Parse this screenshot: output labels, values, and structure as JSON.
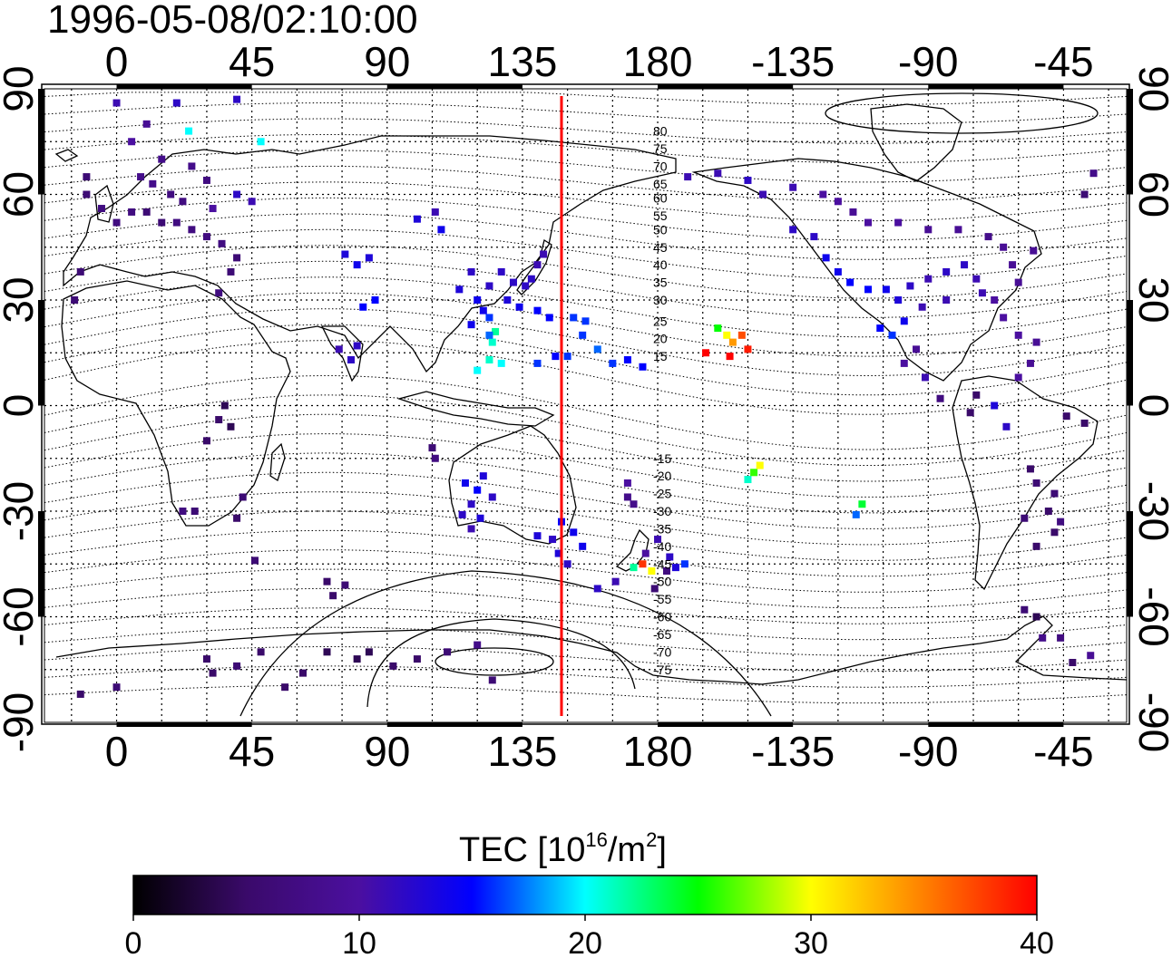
{
  "timestamp": "1996-05-08/02:10:00",
  "map": {
    "lon_ticks": [
      "0",
      "45",
      "90",
      "135",
      "180",
      "-135",
      "-90",
      "-45"
    ],
    "lon_tick_values": [
      0,
      45,
      90,
      135,
      180,
      225,
      270,
      315
    ],
    "lat_ticks": [
      "90",
      "60",
      "30",
      "0",
      "-30",
      "-60",
      "-90"
    ],
    "lat_tick_values": [
      90,
      60,
      30,
      0,
      -30,
      -60,
      -90
    ],
    "lon_range": [
      -24,
      336
    ],
    "lat_range": [
      -90,
      90
    ],
    "grid": "dotted-15deg",
    "meridian_marker": {
      "lon": 148,
      "color": "#ff0000"
    },
    "contour_labels": [
      "80",
      "75",
      "70",
      "65",
      "60",
      "55",
      "50",
      "45",
      "40",
      "35",
      "30",
      "25",
      "20",
      "15",
      "-15",
      "-20",
      "-25",
      "-30",
      "-35",
      "-40",
      "-45",
      "-50",
      "-55",
      "-60",
      "-65",
      "-70",
      "-75"
    ],
    "contour_label_lats": [
      78,
      73,
      68,
      63,
      59,
      54,
      50,
      45,
      40,
      35,
      30,
      24,
      19,
      14,
      -15,
      -20,
      -25,
      -30,
      -35,
      -40,
      -45,
      -50,
      -55,
      -60,
      -65,
      -70,
      -75
    ]
  },
  "colorbar": {
    "title_main": "TEC  [10",
    "title_sup1": "16",
    "title_mid": "/m",
    "title_sup2": "2",
    "title_end": "]",
    "ticks": [
      "0",
      "10",
      "20",
      "30",
      "40"
    ],
    "min": 0,
    "max": 40,
    "colors": [
      "#000000",
      "#3a0a6a",
      "#4b0fa0",
      "#0000ff",
      "#00ffff",
      "#00ff00",
      "#ffff00",
      "#ff8000",
      "#ff0000"
    ]
  },
  "tec_observations": [
    [
      8,
      65,
      8
    ],
    [
      12,
      63,
      8
    ],
    [
      18,
      60,
      7
    ],
    [
      22,
      58,
      7
    ],
    [
      5,
      55,
      7
    ],
    [
      10,
      55,
      6
    ],
    [
      15,
      52,
      6
    ],
    [
      20,
      52,
      7
    ],
    [
      25,
      50,
      7
    ],
    [
      30,
      48,
      7
    ],
    [
      35,
      46,
      7
    ],
    [
      40,
      42,
      6
    ],
    [
      -10,
      60,
      6
    ],
    [
      -5,
      56,
      7
    ],
    [
      0,
      52,
      7
    ],
    [
      30,
      64,
      7
    ],
    [
      25,
      68,
      8
    ],
    [
      15,
      70,
      8
    ],
    [
      5,
      75,
      10
    ],
    [
      0,
      86,
      11
    ],
    [
      20,
      86,
      12
    ],
    [
      40,
      87,
      12
    ],
    [
      10,
      80,
      9
    ],
    [
      -10,
      65,
      6
    ],
    [
      24,
      78,
      20
    ],
    [
      48,
      75,
      20
    ],
    [
      40,
      60,
      12
    ],
    [
      45,
      58,
      11
    ],
    [
      32,
      56,
      10
    ],
    [
      -12,
      38,
      6
    ],
    [
      -14,
      30,
      6
    ],
    [
      38,
      38,
      6
    ],
    [
      34,
      32,
      7
    ],
    [
      100,
      53,
      13
    ],
    [
      106,
      55,
      11
    ],
    [
      108,
      50,
      14
    ],
    [
      76,
      43,
      13
    ],
    [
      80,
      40,
      14
    ],
    [
      84,
      42,
      13
    ],
    [
      82,
      28,
      15
    ],
    [
      86,
      30,
      15
    ],
    [
      74,
      16,
      11
    ],
    [
      78,
      13,
      12
    ],
    [
      80,
      17,
      12
    ],
    [
      118,
      38,
      12
    ],
    [
      124,
      34,
      12
    ],
    [
      128,
      38,
      12
    ],
    [
      132,
      35,
      12
    ],
    [
      138,
      36,
      12
    ],
    [
      140,
      40,
      11
    ],
    [
      142,
      43,
      11
    ],
    [
      136,
      34,
      12
    ],
    [
      114,
      33,
      13
    ],
    [
      120,
      30,
      14
    ],
    [
      122,
      27,
      14
    ],
    [
      124,
      25,
      16
    ],
    [
      118,
      23,
      14
    ],
    [
      126,
      21,
      22
    ],
    [
      125,
      18,
      21
    ],
    [
      124,
      13,
      21
    ],
    [
      120,
      10,
      20
    ],
    [
      124,
      20,
      17
    ],
    [
      128,
      12,
      20
    ],
    [
      130,
      30,
      13
    ],
    [
      134,
      28,
      14
    ],
    [
      140,
      27,
      15
    ],
    [
      144,
      25,
      15
    ],
    [
      152,
      25,
      16
    ],
    [
      156,
      24,
      16
    ],
    [
      146,
      14,
      15
    ],
    [
      150,
      14,
      16
    ],
    [
      140,
      12,
      16
    ],
    [
      155,
      20,
      16
    ],
    [
      160,
      16,
      17
    ],
    [
      165,
      12,
      16
    ],
    [
      170,
      13,
      15
    ],
    [
      175,
      11,
      15
    ],
    [
      115,
      -31,
      12
    ],
    [
      118,
      -28,
      12
    ],
    [
      121,
      -32,
      13
    ],
    [
      116,
      -22,
      14
    ],
    [
      120,
      -24,
      15
    ],
    [
      122,
      -20,
      13
    ],
    [
      125,
      -26,
      12
    ],
    [
      118,
      -35,
      11
    ],
    [
      105,
      -12,
      6
    ],
    [
      106,
      -15,
      7
    ],
    [
      140,
      -37,
      13
    ],
    [
      145,
      -38,
      12
    ],
    [
      148,
      -33,
      15
    ],
    [
      152,
      -36,
      14
    ],
    [
      147,
      -42,
      13
    ],
    [
      150,
      -45,
      12
    ],
    [
      155,
      -40,
      14
    ],
    [
      160,
      -52,
      12
    ],
    [
      166,
      -50,
      11
    ],
    [
      172,
      -46,
      22
    ],
    [
      175,
      -45,
      38
    ],
    [
      178,
      -47,
      30
    ],
    [
      176,
      -42,
      10
    ],
    [
      180,
      -38,
      11
    ],
    [
      184,
      -43,
      12
    ],
    [
      186,
      -46,
      13
    ],
    [
      189,
      -45,
      16
    ],
    [
      170,
      -26,
      8
    ],
    [
      172,
      -28,
      8
    ],
    [
      170,
      -22,
      10
    ],
    [
      183,
      -47,
      7
    ],
    [
      179,
      -52,
      6
    ],
    [
      200,
      22,
      25
    ],
    [
      203,
      20,
      30
    ],
    [
      205,
      18,
      34
    ],
    [
      208,
      20,
      37
    ],
    [
      210,
      16,
      39
    ],
    [
      204,
      14,
      40
    ],
    [
      196,
      15,
      40
    ],
    [
      210,
      -21,
      21
    ],
    [
      212,
      -19,
      26
    ],
    [
      214,
      -17,
      30
    ],
    [
      248,
      -28,
      24
    ],
    [
      246,
      -31,
      17
    ],
    [
      190,
      65,
      11
    ],
    [
      200,
      66,
      11
    ],
    [
      210,
      64,
      12
    ],
    [
      215,
      60,
      11
    ],
    [
      225,
      62,
      11
    ],
    [
      235,
      60,
      10
    ],
    [
      240,
      58,
      10
    ],
    [
      245,
      55,
      9
    ],
    [
      250,
      52,
      10
    ],
    [
      260,
      52,
      10
    ],
    [
      270,
      50,
      9
    ],
    [
      280,
      50,
      9
    ],
    [
      290,
      48,
      8
    ],
    [
      295,
      45,
      9
    ],
    [
      225,
      50,
      12
    ],
    [
      232,
      48,
      12
    ],
    [
      236,
      42,
      14
    ],
    [
      240,
      38,
      14
    ],
    [
      244,
      35,
      15
    ],
    [
      250,
      33,
      15
    ],
    [
      256,
      33,
      14
    ],
    [
      260,
      30,
      13
    ],
    [
      264,
      34,
      12
    ],
    [
      270,
      36,
      11
    ],
    [
      276,
      38,
      12
    ],
    [
      282,
      40,
      12
    ],
    [
      286,
      36,
      11
    ],
    [
      288,
      32,
      11
    ],
    [
      292,
      30,
      10
    ],
    [
      276,
      30,
      11
    ],
    [
      268,
      28,
      11
    ],
    [
      262,
      24,
      14
    ],
    [
      258,
      20,
      16
    ],
    [
      254,
      22,
      15
    ],
    [
      298,
      40,
      9
    ],
    [
      305,
      44,
      9
    ],
    [
      300,
      35,
      9
    ],
    [
      295,
      25,
      10
    ],
    [
      300,
      20,
      10
    ],
    [
      306,
      18,
      9
    ],
    [
      304,
      12,
      9
    ],
    [
      300,
      8,
      10
    ],
    [
      296,
      -6,
      12
    ],
    [
      292,
      0,
      13
    ],
    [
      322,
      60,
      6
    ],
    [
      325,
      66,
      8
    ],
    [
      304,
      -18,
      5
    ],
    [
      306,
      -22,
      6
    ],
    [
      312,
      -25,
      6
    ],
    [
      310,
      -30,
      5
    ],
    [
      312,
      -36,
      5
    ],
    [
      306,
      -40,
      5
    ],
    [
      302,
      -32,
      6
    ],
    [
      314,
      -33,
      7
    ],
    [
      302,
      -58,
      6
    ],
    [
      306,
      -60,
      4
    ],
    [
      308,
      -66,
      8
    ],
    [
      314,
      -66,
      7
    ],
    [
      318,
      -73,
      5
    ],
    [
      324,
      -71,
      9
    ],
    [
      322,
      -5,
      5
    ],
    [
      316,
      -3,
      5
    ],
    [
      284,
      -2,
      5
    ],
    [
      286,
      3,
      5
    ],
    [
      274,
      2,
      7
    ],
    [
      269,
      8,
      11
    ],
    [
      262,
      12,
      10
    ],
    [
      266,
      16,
      9
    ],
    [
      34,
      -4,
      5
    ],
    [
      38,
      -6,
      4
    ],
    [
      36,
      0,
      4
    ],
    [
      30,
      -10,
      5
    ],
    [
      42,
      -26,
      6
    ],
    [
      40,
      -32,
      5
    ],
    [
      26,
      -30,
      6
    ],
    [
      22,
      -30,
      7
    ],
    [
      46,
      -44,
      6
    ],
    [
      70,
      -50,
      5
    ],
    [
      72,
      -54,
      5
    ],
    [
      76,
      -51,
      6
    ],
    [
      -12,
      -82,
      5
    ],
    [
      0,
      -80,
      6
    ],
    [
      30,
      -72,
      5
    ],
    [
      32,
      -76,
      5
    ],
    [
      40,
      -74,
      6
    ],
    [
      48,
      -70,
      5
    ],
    [
      56,
      -80,
      5
    ],
    [
      62,
      -76,
      5
    ],
    [
      70,
      -70,
      4
    ],
    [
      80,
      -72,
      4
    ],
    [
      84,
      -70,
      4
    ],
    [
      92,
      -74,
      5
    ],
    [
      100,
      -72,
      5
    ],
    [
      110,
      -70,
      6
    ],
    [
      120,
      -68,
      8
    ],
    [
      125,
      -78,
      6
    ]
  ],
  "attributions": []
}
